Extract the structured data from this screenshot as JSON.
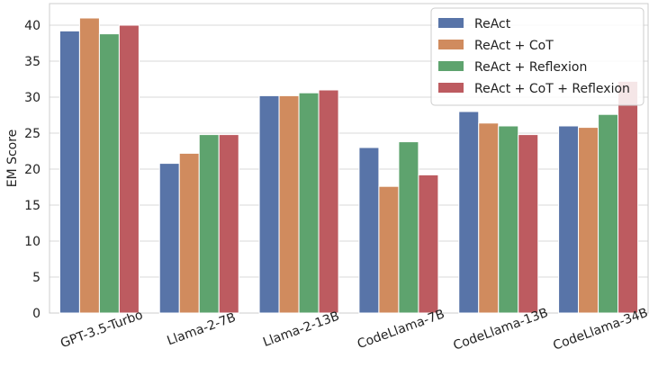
{
  "chart_data": {
    "type": "bar",
    "categories": [
      "GPT-3.5-Turbo",
      "Llama-2-7B",
      "Llama-2-13B",
      "CodeLlama-7B",
      "CodeLlama-13B",
      "CodeLlama-34B"
    ],
    "series": [
      {
        "name": "ReAct",
        "color": "#5874a8",
        "values": [
          39.2,
          20.8,
          30.2,
          23.0,
          28.0,
          26.0
        ]
      },
      {
        "name": "ReAct + CoT",
        "color": "#d08b5e",
        "values": [
          41.0,
          22.2,
          30.2,
          17.6,
          26.4,
          25.8
        ]
      },
      {
        "name": "ReAct + Reflexion",
        "color": "#5ea36e",
        "values": [
          38.8,
          24.8,
          30.6,
          23.8,
          26.0,
          27.6
        ]
      },
      {
        "name": "ReAct + CoT + Reflexion",
        "color": "#bd5b60",
        "values": [
          40.0,
          24.8,
          31.0,
          19.2,
          24.8,
          32.2
        ]
      }
    ],
    "ylabel": "EM Score",
    "xlabel": "",
    "ylim": [
      0,
      43
    ],
    "yticks": [
      0,
      5,
      10,
      15,
      20,
      25,
      30,
      35,
      40
    ],
    "grid": "horizontal",
    "legend_position": "top-right"
  }
}
